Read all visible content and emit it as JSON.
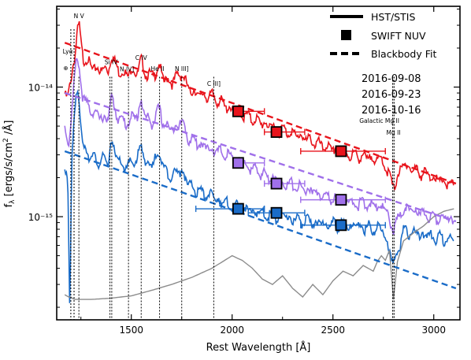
{
  "chart_data": {
    "type": "line",
    "xlabel": "Rest Wavelength [Å]",
    "ylabel": "f_λ [ergs/s/cm² /Å]",
    "xlim": [
      1130,
      3130
    ],
    "ylim": [
      1.6e-16,
      4.2e-14
    ],
    "yscale": "log",
    "x_ticks": [
      1500,
      2000,
      2500,
      3000
    ],
    "x_tick_labels": [
      "1500",
      "2000",
      "2500",
      "3000"
    ],
    "y_ticks": [
      1e-15,
      1e-14
    ],
    "y_tick_labels": [
      "10⁻¹⁵",
      "10⁻¹⁴"
    ],
    "grid": false,
    "legend": {
      "placement": "top-right",
      "entries": [
        {
          "label": "HST/STIS",
          "style": "solid-line"
        },
        {
          "label": "SWIFT NUV",
          "style": "square-marker"
        },
        {
          "label": "Blackbody Fit",
          "style": "dashed-line"
        }
      ]
    },
    "epochs": [
      {
        "label": "2016-09-08",
        "color": "#e8141c"
      },
      {
        "label": "2016-09-23",
        "color": "#a070ea"
      },
      {
        "label": "2016-10-16",
        "color": "#1a6cc8"
      }
    ],
    "line_markers": [
      {
        "label": "Lyα",
        "wavelength": 1216,
        "label_wavelength": 1185,
        "label_y": 1.82e-14
      },
      {
        "label": "N V",
        "wavelength": 1240,
        "label_wavelength": 1240,
        "label_y": 3.4e-14
      },
      {
        "label": "⊕",
        "wavelength": 1200,
        "label_wavelength": 1175,
        "label_y": 1.35e-14
      },
      {
        "label": "Si IV",
        "wavelength": 1400,
        "label_wavelength": 1400,
        "label_y": 1.5e-14
      },
      {
        "label": "N IV]",
        "wavelength": 1486,
        "label_wavelength": 1478,
        "label_y": 1.32e-14
      },
      {
        "label": "C IV",
        "wavelength": 1549,
        "label_wavelength": 1549,
        "label_y": 1.62e-14
      },
      {
        "label": "He II",
        "wavelength": 1640,
        "label_wavelength": 1630,
        "label_y": 1.33e-14
      },
      {
        "label": "N III]",
        "wavelength": 1750,
        "label_wavelength": 1750,
        "label_y": 1.33e-14
      },
      {
        "label": "C III]",
        "wavelength": 1909,
        "label_wavelength": 1909,
        "label_y": 1.02e-14
      },
      {
        "label": "Galactic Mg II",
        "wavelength": 2800,
        "label_wavelength": 2730,
        "label_y": 5.3e-15
      },
      {
        "label": "Mg II",
        "wavelength": 2800,
        "label_wavelength": 2800,
        "label_y": 4.3e-15
      }
    ],
    "line_marker_positions": [
      1200,
      1216,
      1240,
      1394,
      1403,
      1486,
      1549,
      1640,
      1750,
      1909,
      2796,
      2803,
      2796,
      2803
    ],
    "series": [
      {
        "name": "2016-09-08",
        "kind": "spectrum",
        "color": "#e8141c",
        "x": [
          1170,
          1185,
          1200,
          1210,
          1222,
          1232,
          1242,
          1250,
          1262,
          1280,
          1300,
          1330,
          1360,
          1385,
          1400,
          1420,
          1450,
          1480,
          1500,
          1530,
          1549,
          1570,
          1600,
          1640,
          1660,
          1700,
          1750,
          1780,
          1820,
          1860,
          1900,
          1950,
          2000,
          2050,
          2100,
          2150,
          2200,
          2250,
          2300,
          2350,
          2400,
          2450,
          2500,
          2550,
          2600,
          2650,
          2700,
          2750,
          2800,
          2850,
          2900,
          2950,
          3000,
          3050,
          3100
        ],
        "y": [
          9.2e-15,
          8.6e-15,
          1.05e-14,
          1.45e-14,
          1.9e-14,
          2.7e-14,
          2.9e-14,
          2.2e-14,
          1.7e-14,
          1.6e-14,
          1.45e-14,
          1.35e-14,
          1.4e-14,
          1.3e-14,
          1.8e-14,
          1.5e-14,
          1.3e-14,
          1.25e-14,
          1.35e-14,
          1.3e-14,
          1.6e-14,
          1.3e-14,
          1.2e-14,
          1.45e-14,
          1.15e-14,
          1.1e-14,
          1.3e-14,
          9.8e-15,
          9e-15,
          8.5e-15,
          8.6e-15,
          7.5e-15,
          6.6e-15,
          6.2e-15,
          5.7e-15,
          5.3e-15,
          4.9e-15,
          4.7e-15,
          4.4e-15,
          4.1e-15,
          3.8e-15,
          3.5e-15,
          3.3e-15,
          3.1e-15,
          3e-15,
          2.9e-15,
          2.8e-15,
          2.7e-15,
          1.7e-15,
          2.55e-15,
          2.3e-15,
          2.15e-15,
          2e-15,
          1.85e-15,
          1.7e-15
        ]
      },
      {
        "name": "2016-09-23",
        "kind": "spectrum",
        "color": "#a070ea",
        "x": [
          1170,
          1190,
          1205,
          1215,
          1225,
          1235,
          1245,
          1260,
          1280,
          1300,
          1330,
          1360,
          1385,
          1400,
          1420,
          1450,
          1480,
          1500,
          1530,
          1549,
          1570,
          1600,
          1640,
          1660,
          1700,
          1750,
          1780,
          1820,
          1860,
          1900,
          1950,
          2000,
          2050,
          2100,
          2150,
          2200,
          2250,
          2300,
          2350,
          2400,
          2450,
          2500,
          2550,
          2600,
          2650,
          2700,
          2750,
          2800,
          2850,
          2900,
          2950,
          3000,
          3050,
          3100
        ],
        "y": [
          5.2e-15,
          3.4e-15,
          6.5e-15,
          1.1e-14,
          1.5e-14,
          1.6e-14,
          1.25e-14,
          8.5e-15,
          7.2e-15,
          6.8e-15,
          6e-15,
          5.8e-15,
          5.6e-15,
          8.5e-15,
          6.5e-15,
          5.5e-15,
          5.3e-15,
          5.8e-15,
          6e-15,
          7.8e-15,
          6e-15,
          5.2e-15,
          6.8e-15,
          5.2e-15,
          4.7e-15,
          5.5e-15,
          4.1e-15,
          3.8e-15,
          3.5e-15,
          3.3e-15,
          3.1e-15,
          2.85e-15,
          2.55e-15,
          2.35e-15,
          2.15e-15,
          2e-15,
          1.85e-15,
          1.75e-15,
          1.65e-15,
          1.55e-15,
          1.45e-15,
          1.38e-15,
          1.32e-15,
          1.28e-15,
          1.25e-15,
          1.22e-15,
          1.2e-15,
          8e-16,
          1.15e-15,
          1.1e-15,
          1.05e-15,
          1e-15,
          9.8e-16,
          9.6e-16
        ]
      },
      {
        "name": "2016-10-16",
        "kind": "spectrum",
        "color": "#1a6cc8",
        "x": [
          1170,
          1185,
          1195,
          1205,
          1215,
          1225,
          1235,
          1245,
          1260,
          1280,
          1300,
          1330,
          1360,
          1385,
          1400,
          1420,
          1450,
          1480,
          1500,
          1530,
          1549,
          1570,
          1600,
          1640,
          1660,
          1700,
          1750,
          1780,
          1820,
          1860,
          1900,
          1950,
          2000,
          2050,
          2100,
          2150,
          2200,
          2250,
          2300,
          2350,
          2400,
          2450,
          2500,
          2550,
          2600,
          2650,
          2700,
          2750,
          2800,
          2850,
          2900,
          2950,
          3000,
          3050,
          3100
        ],
        "y": [
          2.6e-15,
          1.7e-15,
          1.6e-16,
          3.2e-15,
          5.5e-15,
          8.5e-15,
          9e-15,
          6e-15,
          3.6e-15,
          3.2e-15,
          2.9e-15,
          2.7e-15,
          2.75e-15,
          2.6e-15,
          3.9e-15,
          3e-15,
          2.5e-15,
          2.4e-15,
          2.6e-15,
          2.8e-15,
          3.5e-15,
          2.7e-15,
          2.4e-15,
          3.3e-15,
          2.3e-15,
          2.1e-15,
          2.3e-15,
          1.8e-15,
          1.6e-15,
          1.5e-15,
          1.45e-15,
          1.3e-15,
          1.2e-15,
          1.15e-15,
          1.1e-15,
          1.05e-15,
          1.02e-15,
          1e-15,
          9.6e-16,
          9.3e-16,
          9e-16,
          8.8e-16,
          8.7e-16,
          8.6e-16,
          8.5e-16,
          8.3e-16,
          8.2e-16,
          8e-16,
          4.2e-16,
          7.8e-16,
          7.5e-16,
          7.2e-16,
          7e-16,
          6.8e-16,
          6.6e-16
        ]
      },
      {
        "name": "grey spectrum",
        "kind": "spectrum",
        "color": "#8c8c8c",
        "x": [
          1170,
          1190,
          1200,
          1215,
          1240,
          1300,
          1400,
          1500,
          1600,
          1700,
          1800,
          1900,
          2000,
          2050,
          2100,
          2150,
          2200,
          2250,
          2300,
          2350,
          2400,
          2450,
          2500,
          2550,
          2600,
          2650,
          2700,
          2720,
          2740,
          2760,
          2780,
          2800,
          2820,
          2850,
          2900,
          2950,
          3000,
          3050,
          3100
        ],
        "y": [
          2.5e-16,
          2.4e-16,
          2.4e-16,
          2.3e-16,
          2.3e-16,
          2.3e-16,
          2.35e-16,
          2.45e-16,
          2.7e-16,
          3e-16,
          3.4e-16,
          4e-16,
          5e-16,
          4.6e-16,
          4e-16,
          3.3e-16,
          3e-16,
          3.5e-16,
          2.8e-16,
          2.4e-16,
          3e-16,
          2.5e-16,
          3.2e-16,
          3.8e-16,
          3.5e-16,
          4.2e-16,
          3.8e-16,
          4.5e-16,
          5e-16,
          4.6e-16,
          5.5e-16,
          2.3e-16,
          4.5e-16,
          6.5e-16,
          7.5e-16,
          8.5e-16,
          1e-15,
          1.1e-15,
          1.15e-15
        ]
      },
      {
        "name": "2016-09-08 blackbody",
        "kind": "blackbody",
        "color": "#e8141c",
        "x": [
          1170,
          3110
        ],
        "y": [
          2.2e-14,
          1.8e-15
        ]
      },
      {
        "name": "2016-09-23 blackbody",
        "kind": "blackbody",
        "color": "#a070ea",
        "x": [
          1170,
          3110
        ],
        "y": [
          9e-15,
          9.2e-16
        ]
      },
      {
        "name": "2016-10-16 blackbody",
        "kind": "blackbody",
        "color": "#1a6cc8",
        "x": [
          1170,
          3110
        ],
        "y": [
          3.2e-15,
          2.8e-16
        ]
      }
    ],
    "swift_nuv": [
      {
        "epoch": "2016-09-08",
        "color": "#e8141c",
        "points": [
          {
            "x": 2030,
            "y": 6.5e-15,
            "xerr": [
              2030,
              2160
            ]
          },
          {
            "x": 2220,
            "y": 4.5e-15,
            "xerr": [
              2160,
              2360
            ]
          },
          {
            "x": 2540,
            "y": 3.2e-15,
            "xerr": [
              2340,
              2760
            ]
          }
        ]
      },
      {
        "epoch": "2016-09-23",
        "color": "#a070ea",
        "points": [
          {
            "x": 2030,
            "y": 2.6e-15,
            "xerr": [
              2030,
              2160
            ]
          },
          {
            "x": 2220,
            "y": 1.8e-15,
            "xerr": [
              2160,
              2360
            ]
          },
          {
            "x": 2540,
            "y": 1.35e-15,
            "xerr": [
              2340,
              2760
            ]
          }
        ]
      },
      {
        "epoch": "2016-10-16",
        "color": "#1a6cc8",
        "points": [
          {
            "x": 2030,
            "y": 1.15e-15,
            "xerr": [
              1820,
              2160
            ]
          },
          {
            "x": 2220,
            "y": 1.07e-15,
            "xerr": [
              2080,
              2360
            ]
          },
          {
            "x": 2540,
            "y": 8.6e-16,
            "xerr": [
              2340,
              2760
            ]
          }
        ]
      }
    ]
  }
}
